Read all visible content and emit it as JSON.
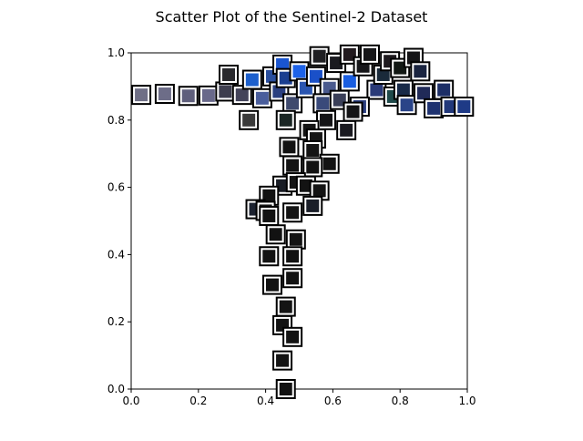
{
  "chart_data": {
    "type": "scatter",
    "title": "Scatter Plot of the Sentinel-2 Dataset",
    "xlabel": "",
    "ylabel": "",
    "xlim": [
      0,
      1
    ],
    "ylim": [
      0,
      1
    ],
    "xticks": [
      "0.0",
      "0.2",
      "0.4",
      "0.6",
      "0.8",
      "1.0"
    ],
    "yticks": [
      "0.0",
      "0.2",
      "0.4",
      "0.6",
      "0.8",
      "1.0"
    ],
    "grid": false,
    "legend": "none",
    "marker": "image-thumbnail",
    "points": [
      {
        "x": 0.03,
        "y": 0.875,
        "color": "#6f6f86"
      },
      {
        "x": 0.1,
        "y": 0.878,
        "color": "#6d6d88"
      },
      {
        "x": 0.17,
        "y": 0.872,
        "color": "#5f5f7c"
      },
      {
        "x": 0.23,
        "y": 0.873,
        "color": "#69698a"
      },
      {
        "x": 0.28,
        "y": 0.885,
        "color": "#3d3d4e"
      },
      {
        "x": 0.29,
        "y": 0.935,
        "color": "#2a2a2e"
      },
      {
        "x": 0.33,
        "y": 0.875,
        "color": "#44445a"
      },
      {
        "x": 0.36,
        "y": 0.92,
        "color": "#1c5fcc"
      },
      {
        "x": 0.35,
        "y": 0.8,
        "color": "#3a3a3a"
      },
      {
        "x": 0.39,
        "y": 0.865,
        "color": "#4a5e9c"
      },
      {
        "x": 0.42,
        "y": 0.93,
        "color": "#2a4f9e"
      },
      {
        "x": 0.45,
        "y": 0.965,
        "color": "#1a55d0"
      },
      {
        "x": 0.44,
        "y": 0.885,
        "color": "#2a3f80"
      },
      {
        "x": 0.46,
        "y": 0.925,
        "color": "#1a3e90"
      },
      {
        "x": 0.48,
        "y": 0.85,
        "color": "#3f4a6e"
      },
      {
        "x": 0.5,
        "y": 0.945,
        "color": "#1d62e8"
      },
      {
        "x": 0.52,
        "y": 0.895,
        "color": "#2a55b0"
      },
      {
        "x": 0.55,
        "y": 0.93,
        "color": "#1a50c8"
      },
      {
        "x": 0.56,
        "y": 0.99,
        "color": "#1f1f22"
      },
      {
        "x": 0.59,
        "y": 0.895,
        "color": "#4a5a8e"
      },
      {
        "x": 0.61,
        "y": 0.97,
        "color": "#1a1a1f"
      },
      {
        "x": 0.57,
        "y": 0.85,
        "color": "#3a4a7a"
      },
      {
        "x": 0.62,
        "y": 0.86,
        "color": "#3a3f58"
      },
      {
        "x": 0.65,
        "y": 0.915,
        "color": "#1a5ee0"
      },
      {
        "x": 0.65,
        "y": 0.995,
        "color": "#221a1e"
      },
      {
        "x": 0.69,
        "y": 0.96,
        "color": "#161619"
      },
      {
        "x": 0.71,
        "y": 0.995,
        "color": "#161618"
      },
      {
        "x": 0.73,
        "y": 0.89,
        "color": "#2a3a78"
      },
      {
        "x": 0.75,
        "y": 0.935,
        "color": "#1a2a3a"
      },
      {
        "x": 0.77,
        "y": 0.975,
        "color": "#1e1a1e"
      },
      {
        "x": 0.78,
        "y": 0.87,
        "color": "#1f4a4a"
      },
      {
        "x": 0.8,
        "y": 0.955,
        "color": "#121814"
      },
      {
        "x": 0.81,
        "y": 0.89,
        "color": "#182a48"
      },
      {
        "x": 0.82,
        "y": 0.845,
        "color": "#2a4488"
      },
      {
        "x": 0.84,
        "y": 0.985,
        "color": "#141416"
      },
      {
        "x": 0.86,
        "y": 0.945,
        "color": "#1a2440"
      },
      {
        "x": 0.87,
        "y": 0.88,
        "color": "#202a58"
      },
      {
        "x": 0.9,
        "y": 0.835,
        "color": "#1e3270"
      },
      {
        "x": 0.93,
        "y": 0.89,
        "color": "#1c2e66"
      },
      {
        "x": 0.95,
        "y": 0.84,
        "color": "#22387a"
      },
      {
        "x": 0.99,
        "y": 0.84,
        "color": "#1e3a86"
      },
      {
        "x": 0.68,
        "y": 0.84,
        "color": "#2a3e80"
      },
      {
        "x": 0.66,
        "y": 0.825,
        "color": "#141416"
      },
      {
        "x": 0.58,
        "y": 0.8,
        "color": "#141416"
      },
      {
        "x": 0.64,
        "y": 0.77,
        "color": "#1a1a20"
      },
      {
        "x": 0.53,
        "y": 0.77,
        "color": "#141414"
      },
      {
        "x": 0.46,
        "y": 0.8,
        "color": "#1a2624"
      },
      {
        "x": 0.55,
        "y": 0.745,
        "color": "#161616"
      },
      {
        "x": 0.47,
        "y": 0.72,
        "color": "#121212"
      },
      {
        "x": 0.54,
        "y": 0.71,
        "color": "#141414"
      },
      {
        "x": 0.59,
        "y": 0.67,
        "color": "#131313"
      },
      {
        "x": 0.48,
        "y": 0.665,
        "color": "#141414"
      },
      {
        "x": 0.54,
        "y": 0.66,
        "color": "#121212"
      },
      {
        "x": 0.45,
        "y": 0.605,
        "color": "#181c24"
      },
      {
        "x": 0.49,
        "y": 0.615,
        "color": "#141414"
      },
      {
        "x": 0.52,
        "y": 0.605,
        "color": "#131313"
      },
      {
        "x": 0.56,
        "y": 0.59,
        "color": "#141414"
      },
      {
        "x": 0.41,
        "y": 0.575,
        "color": "#121212"
      },
      {
        "x": 0.37,
        "y": 0.535,
        "color": "#1c2230"
      },
      {
        "x": 0.4,
        "y": 0.53,
        "color": "#161616"
      },
      {
        "x": 0.41,
        "y": 0.515,
        "color": "#121212"
      },
      {
        "x": 0.48,
        "y": 0.525,
        "color": "#141414"
      },
      {
        "x": 0.54,
        "y": 0.545,
        "color": "#1a1e28"
      },
      {
        "x": 0.43,
        "y": 0.46,
        "color": "#121212"
      },
      {
        "x": 0.49,
        "y": 0.445,
        "color": "#131313"
      },
      {
        "x": 0.41,
        "y": 0.395,
        "color": "#141414"
      },
      {
        "x": 0.48,
        "y": 0.395,
        "color": "#121212"
      },
      {
        "x": 0.48,
        "y": 0.33,
        "color": "#131313"
      },
      {
        "x": 0.42,
        "y": 0.31,
        "color": "#121212"
      },
      {
        "x": 0.46,
        "y": 0.245,
        "color": "#141414"
      },
      {
        "x": 0.45,
        "y": 0.19,
        "color": "#121212"
      },
      {
        "x": 0.48,
        "y": 0.155,
        "color": "#131313"
      },
      {
        "x": 0.45,
        "y": 0.085,
        "color": "#141414"
      },
      {
        "x": 0.46,
        "y": 0.0,
        "color": "#121212"
      }
    ]
  }
}
